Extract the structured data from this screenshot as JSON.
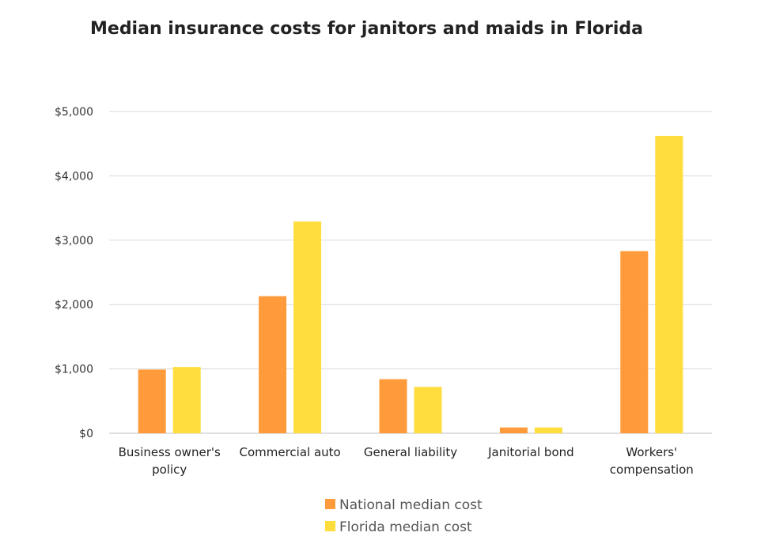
{
  "chart_data": {
    "type": "bar",
    "title": "Median insurance costs for janitors and maids in Florida",
    "xlabel": "",
    "ylabel": "",
    "categories": [
      "Business owner's policy",
      "Commercial auto",
      "General liability",
      "Janitorial bond",
      "Workers' compensation"
    ],
    "category_lines": [
      [
        "Business owner's",
        "policy"
      ],
      [
        "Commercial auto"
      ],
      [
        "General liability"
      ],
      [
        "Janitorial bond"
      ],
      [
        "Workers'",
        "compensation"
      ]
    ],
    "series": [
      {
        "name": "National median cost",
        "color": "#FF9B3A",
        "values": [
          990,
          2130,
          840,
          90,
          2830
        ]
      },
      {
        "name": "Florida median cost",
        "color": "#FFDD3C",
        "values": [
          1030,
          3290,
          720,
          90,
          4620
        ]
      }
    ],
    "ylim": [
      0,
      5000
    ],
    "yticks": [
      0,
      1000,
      2000,
      3000,
      4000,
      5000
    ],
    "ytick_labels": [
      "$0",
      "$1,000",
      "$2,000",
      "$3,000",
      "$4,000",
      "$5,000"
    ],
    "grid": true,
    "legend_position": "bottom"
  }
}
